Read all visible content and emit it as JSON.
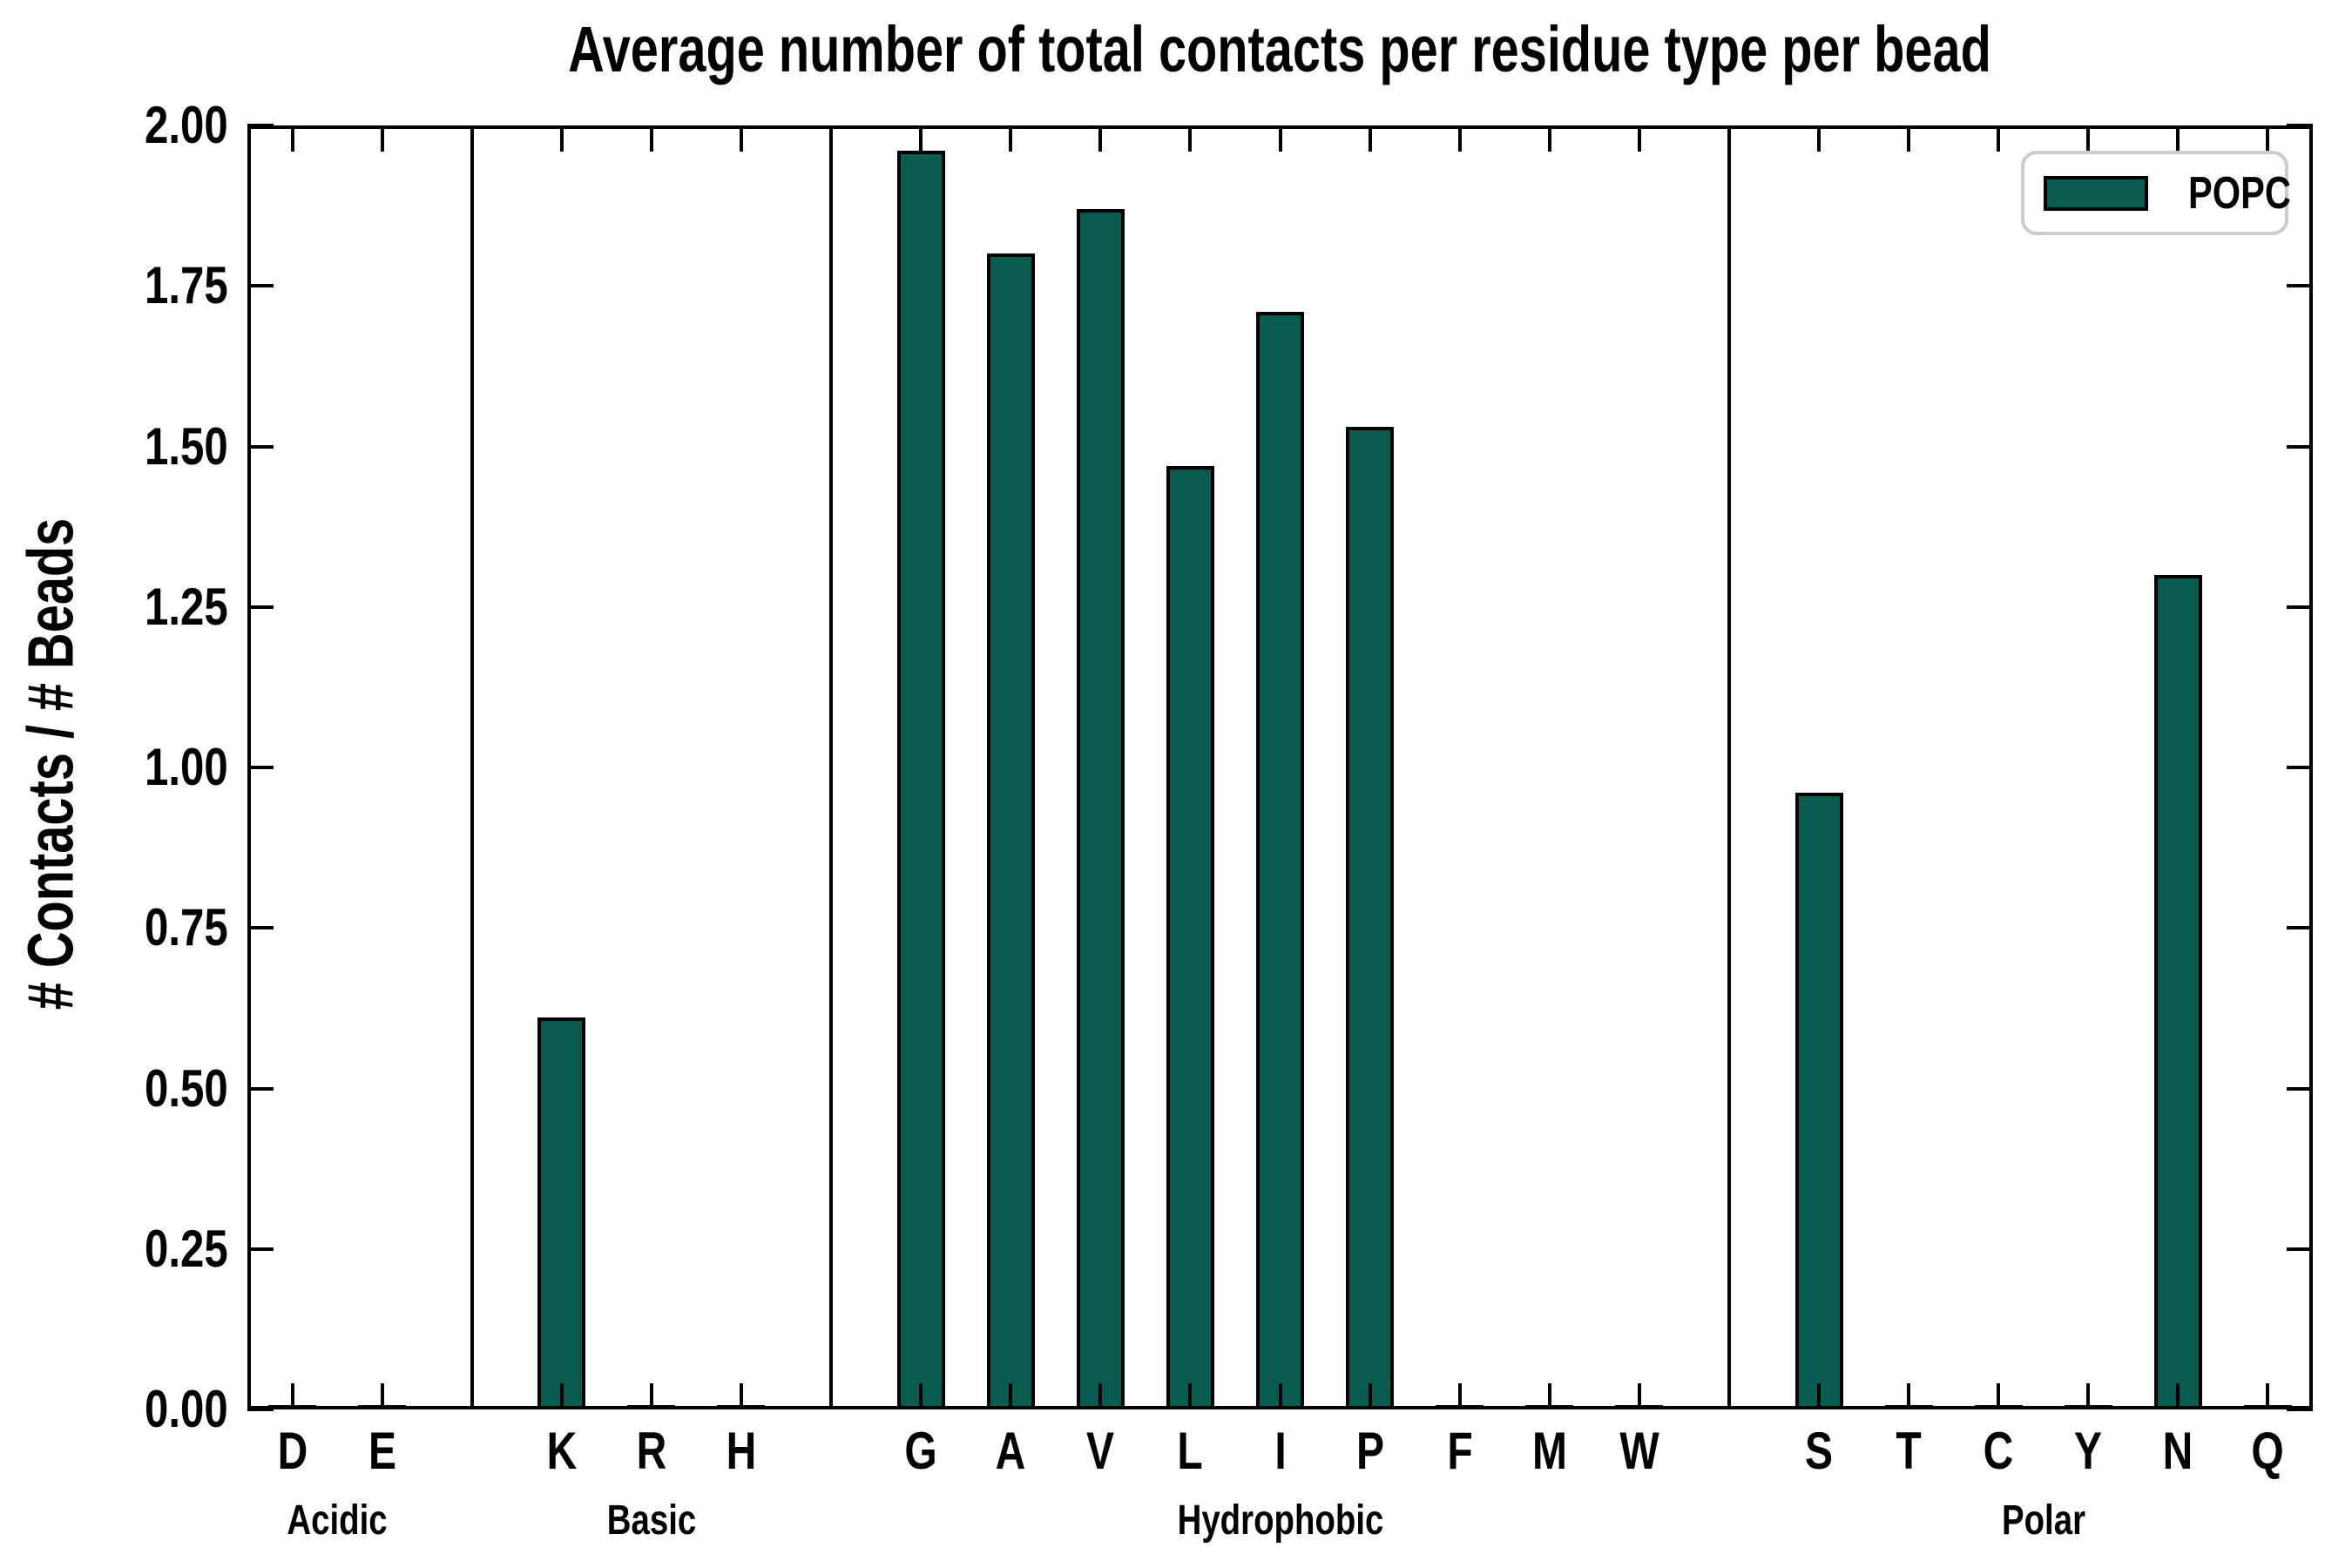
{
  "title": "Average number of total contacts per residue type per bead",
  "ylabel": "# Contacts / # Beads",
  "legend": {
    "label": "POPC"
  },
  "colors": {
    "bar_fill": "#075C4F",
    "bar_edge": "#000000",
    "axis": "#000000",
    "legend_border": "#CCCCCC",
    "background": "#FFFFFF",
    "text": "#000000"
  },
  "chart_data": {
    "type": "bar",
    "title": "Average number of total contacts per residue type per bead",
    "xlabel": "",
    "ylabel": "# Contacts / # Beads",
    "ylim": [
      0,
      2
    ],
    "yticks": [
      "0.00",
      "0.25",
      "0.50",
      "0.75",
      "1.00",
      "1.25",
      "1.50",
      "1.75",
      "2.00"
    ],
    "grid": false,
    "legend_position": "upper right",
    "series": [
      {
        "name": "POPC",
        "color": "#075C4F"
      }
    ],
    "groups": [
      {
        "name": "Acidic",
        "categories": [
          "D",
          "E"
        ],
        "values": [
          0.005,
          0.005
        ]
      },
      {
        "name": "Basic",
        "categories": [
          "K",
          "R",
          "H"
        ],
        "values": [
          0.61,
          0.005,
          0.005
        ]
      },
      {
        "name": "Hydrophobic",
        "categories": [
          "G",
          "A",
          "V",
          "L",
          "I",
          "P",
          "F",
          "M",
          "W"
        ],
        "values": [
          1.96,
          1.8,
          1.87,
          1.47,
          1.71,
          1.53,
          0.005,
          0.005,
          0.005
        ]
      },
      {
        "name": "Polar",
        "categories": [
          "S",
          "T",
          "C",
          "Y",
          "N",
          "Q"
        ],
        "values": [
          0.96,
          0.005,
          0.005,
          0.005,
          1.3,
          0.005
        ]
      }
    ]
  }
}
